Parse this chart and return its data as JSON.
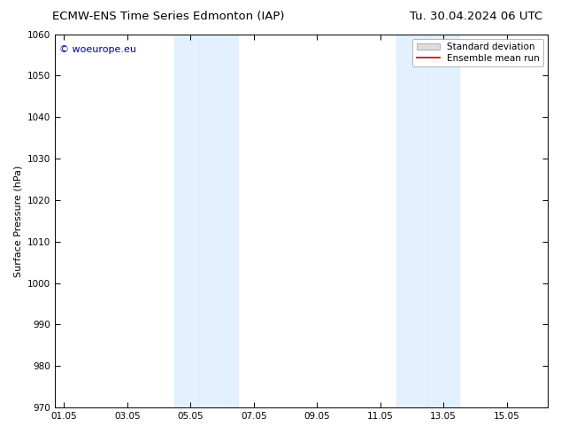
{
  "title_left": "ECMW-ENS Time Series Edmonton (IAP)",
  "title_right": "Tu. 30.04.2024 06 UTC",
  "ylabel": "Surface Pressure (hPa)",
  "ylim": [
    970,
    1060
  ],
  "yticks": [
    970,
    980,
    990,
    1000,
    1010,
    1020,
    1030,
    1040,
    1050,
    1060
  ],
  "shaded_bands": [
    {
      "x_start": 3.5,
      "x_end": 4.25
    },
    {
      "x_start": 4.25,
      "x_end": 5.5
    }
  ],
  "shaded_bands2": [
    {
      "x_start": 10.5,
      "x_end": 11.5
    },
    {
      "x_start": 11.5,
      "x_end": 12.5
    }
  ],
  "shade_color": "#ddeeff",
  "shade_alpha": 0.85,
  "watermark": "© woeurope.eu",
  "watermark_color": "#0000bb",
  "legend_std_label": "Standard deviation",
  "legend_mean_label": "Ensemble mean run",
  "legend_std_facecolor": "#dddddd",
  "legend_std_edgecolor": "#999999",
  "legend_mean_color": "#cc0000",
  "background_color": "#ffffff",
  "plot_bg_color": "#ffffff",
  "tick_labels": [
    "01.05",
    "03.05",
    "05.05",
    "07.05",
    "09.05",
    "11.05",
    "13.05",
    "15.05"
  ],
  "tick_positions": [
    0,
    2,
    4,
    6,
    8,
    10,
    12,
    14
  ],
  "x_min": -0.3,
  "x_max": 15.3,
  "title_fontsize": 9.5,
  "label_fontsize": 8,
  "tick_fontsize": 7.5,
  "watermark_fontsize": 8,
  "legend_fontsize": 7.5
}
